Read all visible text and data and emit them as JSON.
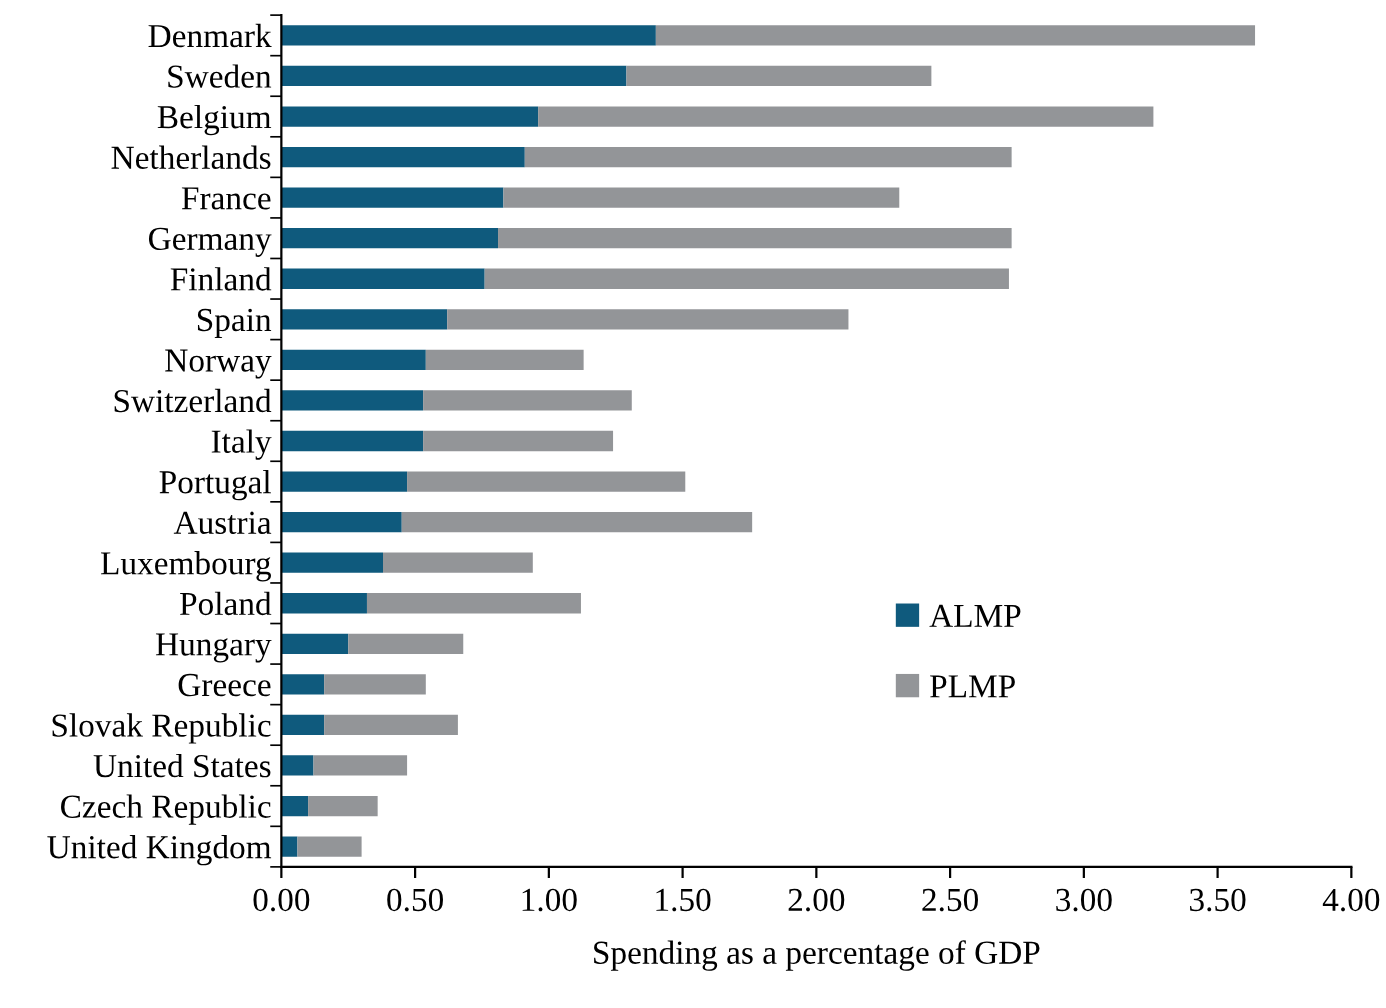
{
  "chart_data": {
    "type": "bar",
    "orientation": "horizontal",
    "stacked": true,
    "categories": [
      "Denmark",
      "Sweden",
      "Belgium",
      "Netherlands",
      "France",
      "Germany",
      "Finland",
      "Spain",
      "Norway",
      "Switzerland",
      "Italy",
      "Portugal",
      "Austria",
      "Luxembourg",
      "Poland",
      "Hungary",
      "Greece",
      "Slovak Republic",
      "United States",
      "Czech Republic",
      "United Kingdom"
    ],
    "series": [
      {
        "name": "ALMP",
        "color": "#0f5a7d",
        "values": [
          1.4,
          1.29,
          0.96,
          0.91,
          0.83,
          0.81,
          0.76,
          0.62,
          0.54,
          0.53,
          0.53,
          0.47,
          0.45,
          0.38,
          0.32,
          0.25,
          0.16,
          0.16,
          0.12,
          0.1,
          0.06
        ]
      },
      {
        "name": "PLMP",
        "color": "#939598",
        "values": [
          2.24,
          1.14,
          2.3,
          1.82,
          1.48,
          1.92,
          1.96,
          1.5,
          0.59,
          0.78,
          0.71,
          1.04,
          1.31,
          0.56,
          0.8,
          0.43,
          0.38,
          0.5,
          0.35,
          0.26,
          0.24
        ]
      }
    ],
    "xlabel": "Spending as a percentage of GDP",
    "xlim": [
      0,
      4
    ],
    "xticks": [
      {
        "value": 0,
        "label": "0.00"
      },
      {
        "value": 0.5,
        "label": "0.50"
      },
      {
        "value": 1,
        "label": "1.00"
      },
      {
        "value": 1.5,
        "label": "1.50"
      },
      {
        "value": 2,
        "label": "2.00"
      },
      {
        "value": 2.5,
        "label": "2.50"
      },
      {
        "value": 3,
        "label": "3.00"
      },
      {
        "value": 3.5,
        "label": "3.50"
      },
      {
        "value": 4,
        "label": "4.00"
      }
    ],
    "grid": false,
    "legend": "center right"
  }
}
